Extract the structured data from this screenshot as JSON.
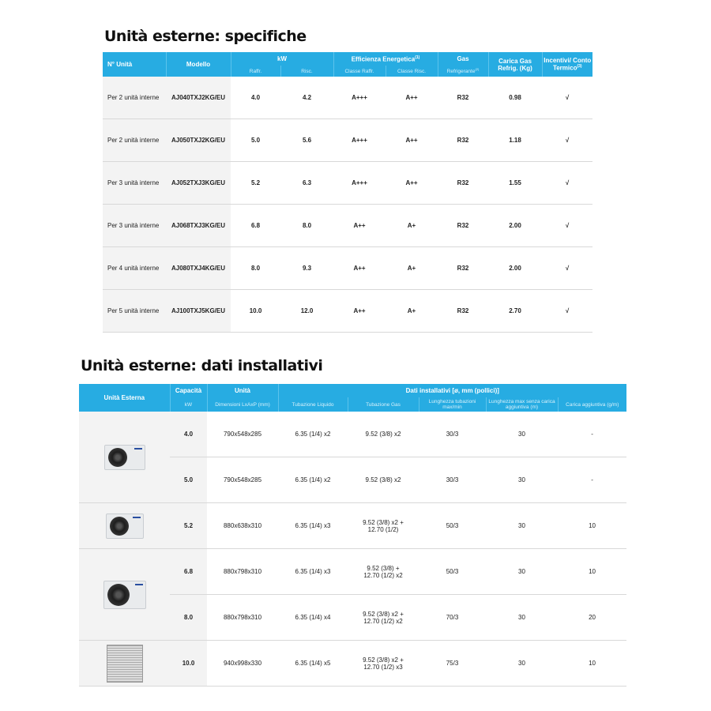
{
  "specs": {
    "title": "Unità esterne: specifiche",
    "headers": {
      "n_unita": "N° Unità",
      "modello": "Modello",
      "kw": "kW",
      "raffr": "Raffr.",
      "risc": "Risc.",
      "efficienza": "Efficienza Energetica",
      "eff_sup": "(1)",
      "classe_raffr": "Classe Raffr.",
      "classe_risc": "Classe Risc.",
      "gas": "Gas",
      "refrigerante": "Refrigerante",
      "refr_sup": "(2)",
      "carica": "Carica Gas Refrig. (Kg)",
      "incentivi": "Incentivi/ Conto Termico",
      "inc_sup": "(3)"
    },
    "rows": [
      [
        "Per 2 unità interne",
        "AJ040TXJ2KG/EU",
        "4.0",
        "4.2",
        "A+++",
        "A++",
        "R32",
        "0.98",
        "√"
      ],
      [
        "Per 2 unità interne",
        "AJ050TXJ2KG/EU",
        "5.0",
        "5.6",
        "A+++",
        "A++",
        "R32",
        "1.18",
        "√"
      ],
      [
        "Per 3 unità interne",
        "AJ052TXJ3KG/EU",
        "5.2",
        "6.3",
        "A+++",
        "A++",
        "R32",
        "1.55",
        "√"
      ],
      [
        "Per 3 unità interne",
        "AJ068TXJ3KG/EU",
        "6.8",
        "8.0",
        "A++",
        "A+",
        "R32",
        "2.00",
        "√"
      ],
      [
        "Per 4 unità interne",
        "AJ080TXJ4KG/EU",
        "8.0",
        "9.3",
        "A++",
        "A+",
        "R32",
        "2.00",
        "√"
      ],
      [
        "Per 5 unità interne",
        "AJ100TXJ5KG/EU",
        "10.0",
        "12.0",
        "A++",
        "A+",
        "R32",
        "2.70",
        "√"
      ]
    ]
  },
  "install": {
    "title": "Unità esterne: dati installativi",
    "headers": {
      "unita_esterna": "Unità Esterna",
      "capacita": "Capacità",
      "kw": "kW",
      "unita": "Unità",
      "dimensioni": "Dimensioni LxAxP (mm)",
      "dati": "Dati installativi [ø, mm (pollici)]",
      "liquido": "Tubazione Liquido",
      "gas": "Tubazione Gas",
      "lunghezza": "Lunghezza tubazioni max/min",
      "lunghezza_max": "Lunghezza max senza carica aggiuntiva (m)",
      "carica": "Carica aggiuntiva (g/m)"
    },
    "rows": [
      [
        "4.0",
        "790x548x285",
        "6.35 (1/4) x2",
        "9.52 (3/8) x2",
        "30/3",
        "30",
        "-"
      ],
      [
        "5.0",
        "790x548x285",
        "6.35 (1/4) x2",
        "9.52 (3/8) x2",
        "30/3",
        "30",
        "-"
      ],
      [
        "5.2",
        "880x638x310",
        "6.35 (1/4) x3",
        "9.52 (3/8) x2 + 12.70 (1/2)",
        "50/3",
        "30",
        "10"
      ],
      [
        "6.8",
        "880x798x310",
        "6.35 (1/4) x3",
        "9.52 (3/8) + 12.70 (1/2) x2",
        "50/3",
        "30",
        "10"
      ],
      [
        "8.0",
        "880x798x310",
        "6.35 (1/4) x4",
        "9.52 (3/8) x2 + 12.70 (1/2) x2",
        "70/3",
        "30",
        "20"
      ],
      [
        "10.0",
        "940x998x330",
        "6.35 (1/4) x5",
        "9.52 (3/8) x2 + 12.70 (1/2) x3",
        "75/3",
        "30",
        "10"
      ]
    ]
  }
}
